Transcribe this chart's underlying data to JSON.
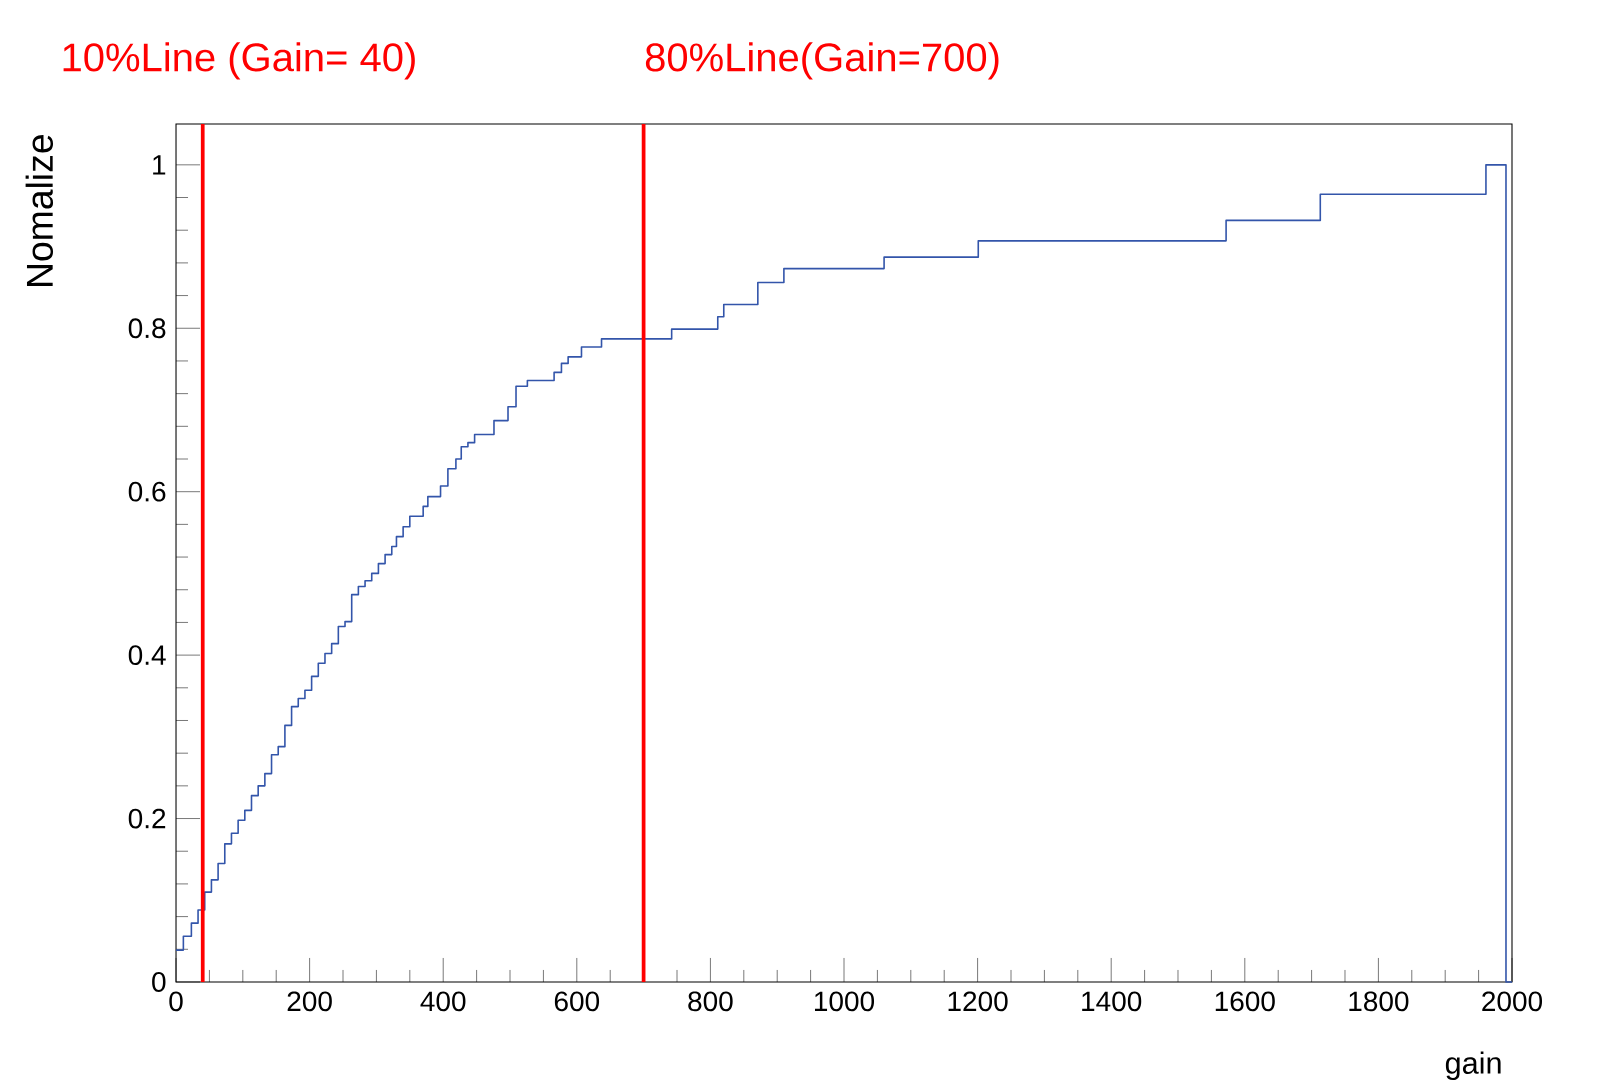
{
  "chart_data": {
    "type": "step",
    "xlabel": "gain",
    "ylabel": "Nomalize",
    "xlim": [
      0,
      2000
    ],
    "ylim": [
      0,
      1.05
    ],
    "xticks": [
      0,
      200,
      400,
      600,
      800,
      1000,
      1200,
      1400,
      1600,
      1800,
      2000
    ],
    "yticks": [
      0,
      0.2,
      0.4,
      0.6,
      0.8,
      1
    ],
    "grid": false,
    "marker": "none",
    "line_style": "solid",
    "series": [
      {
        "color": "#3355aa",
        "x": [
          0,
          11,
          23,
          33,
          43,
          53,
          63,
          73,
          83,
          93,
          103,
          113,
          123,
          133,
          143,
          153,
          163,
          173,
          183,
          193,
          203,
          213,
          223,
          233,
          243,
          253,
          263,
          273,
          283,
          293,
          303,
          313,
          323,
          330,
          340,
          350,
          370,
          377,
          396,
          407,
          419,
          427,
          437,
          447,
          476,
          497,
          509,
          526,
          566,
          577,
          587,
          607,
          637,
          742,
          811,
          820,
          871,
          910,
          1060,
          1201,
          1572,
          1713,
          1961,
          1991,
          2000
        ],
        "values": [
          0.039,
          0.056,
          0.072,
          0.088,
          0.11,
          0.125,
          0.145,
          0.169,
          0.182,
          0.198,
          0.21,
          0.228,
          0.24,
          0.255,
          0.278,
          0.288,
          0.314,
          0.337,
          0.347,
          0.357,
          0.374,
          0.39,
          0.402,
          0.414,
          0.435,
          0.441,
          0.474,
          0.484,
          0.491,
          0.5,
          0.512,
          0.523,
          0.533,
          0.545,
          0.557,
          0.57,
          0.582,
          0.594,
          0.607,
          0.628,
          0.64,
          0.655,
          0.66,
          0.67,
          0.687,
          0.704,
          0.729,
          0.736,
          0.746,
          0.757,
          0.765,
          0.777,
          0.787,
          0.799,
          0.814,
          0.829,
          0.856,
          0.873,
          0.887,
          0.907,
          0.932,
          0.964,
          1.0,
          0,
          0
        ]
      }
    ],
    "ref_lines": [
      {
        "axis": "x",
        "value": 40,
        "label": "10%Line (Gain= 40)",
        "color": "#ff0000"
      },
      {
        "axis": "x",
        "value": 700,
        "label": "80%Line(Gain=700)",
        "color": "#ff0000"
      }
    ]
  }
}
